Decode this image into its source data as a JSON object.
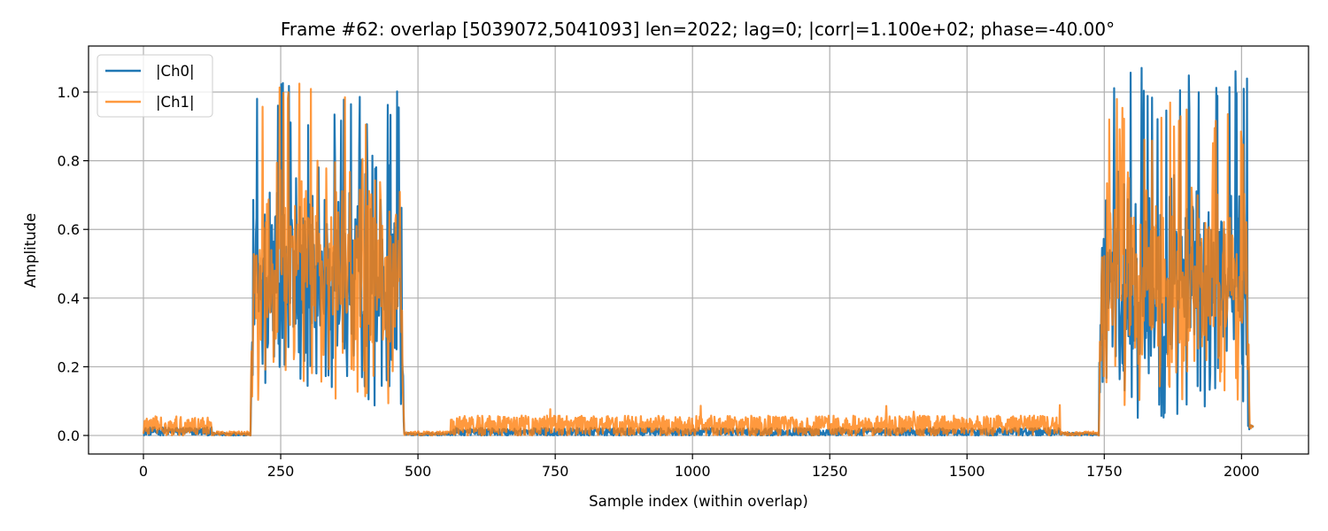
{
  "chart_data": {
    "type": "line",
    "title": "Frame #62: overlap [5039072,5041093]  len=2022; lag=0; |corr|=1.100e+02; phase=-40.00°",
    "xlabel": "Sample index (within overlap)",
    "ylabel": "Amplitude",
    "xlim": [
      -100,
      2122
    ],
    "ylim": [
      -0.054,
      1.134
    ],
    "xticks": [
      0,
      250,
      500,
      750,
      1000,
      1250,
      1500,
      1750,
      2000
    ],
    "xtick_labels": [
      "0",
      "250",
      "500",
      "750",
      "1000",
      "1250",
      "1500",
      "1750",
      "2000"
    ],
    "yticks": [
      0.0,
      0.2,
      0.4,
      0.6,
      0.8,
      1.0
    ],
    "ytick_labels": [
      "0.0",
      "0.2",
      "0.4",
      "0.6",
      "0.8",
      "1.0"
    ],
    "grid": true,
    "legend_position": "top-left",
    "n_samples": 2022,
    "series": [
      {
        "name": "|Ch0|",
        "color": "#1f77b4",
        "opacity": 1.0,
        "segments": [
          {
            "x": [
              0,
              125
            ],
            "level": "noise",
            "mean": 0.012,
            "spread": 0.012
          },
          {
            "x": [
              125,
              195
            ],
            "level": "noise",
            "mean": 0.004,
            "spread": 0.005
          },
          {
            "x": [
              195,
              475
            ],
            "level": "burst",
            "mean": 0.45,
            "spread": 0.25,
            "max": 1.03
          },
          {
            "x": [
              475,
              560
            ],
            "level": "noise",
            "mean": 0.004,
            "spread": 0.004
          },
          {
            "x": [
              560,
              1670
            ],
            "level": "noise",
            "mean": 0.01,
            "spread": 0.012
          },
          {
            "x": [
              1670,
              1740
            ],
            "level": "noise",
            "mean": 0.004,
            "spread": 0.004
          },
          {
            "x": [
              1740,
              2015
            ],
            "level": "burst",
            "mean": 0.42,
            "spread": 0.25,
            "max": 1.08
          },
          {
            "x": [
              2015,
              2022
            ],
            "level": "tail",
            "mean": 0.02,
            "spread": 0.01
          }
        ]
      },
      {
        "name": "|Ch1|",
        "color": "#ff7f0e",
        "opacity": 0.8,
        "segments": [
          {
            "x": [
              0,
              125
            ],
            "level": "noise",
            "mean": 0.028,
            "spread": 0.028
          },
          {
            "x": [
              125,
              195
            ],
            "level": "noise",
            "mean": 0.006,
            "spread": 0.006
          },
          {
            "x": [
              195,
              475
            ],
            "level": "burst",
            "mean": 0.47,
            "spread": 0.24,
            "max": 1.03
          },
          {
            "x": [
              475,
              560
            ],
            "level": "noise",
            "mean": 0.006,
            "spread": 0.006
          },
          {
            "x": [
              560,
              1670
            ],
            "level": "noise",
            "mean": 0.028,
            "spread": 0.03,
            "max": 0.09
          },
          {
            "x": [
              1670,
              1740
            ],
            "level": "noise",
            "mean": 0.006,
            "spread": 0.006
          },
          {
            "x": [
              1740,
              2015
            ],
            "level": "burst",
            "mean": 0.45,
            "spread": 0.24,
            "max": 0.98
          },
          {
            "x": [
              2015,
              2022
            ],
            "level": "tail",
            "mean": 0.02,
            "spread": 0.01
          }
        ]
      }
    ]
  }
}
